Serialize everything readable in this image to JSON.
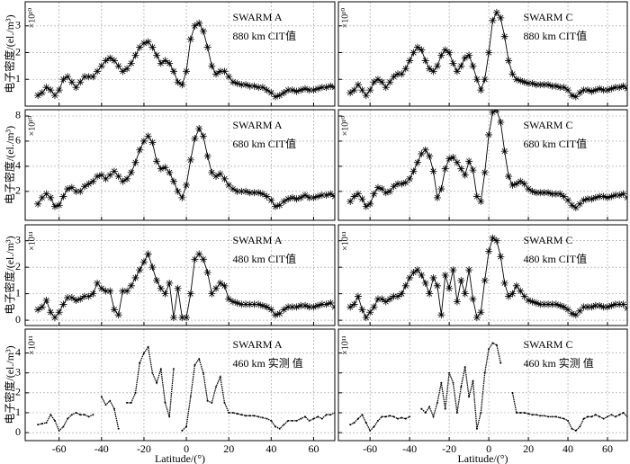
{
  "chart_data": [
    {
      "type": "line",
      "marker": "asterisk",
      "color": "#000000",
      "annotation": [
        "SWARM A",
        "880 km CIT值"
      ],
      "y_exponent_label": "×10¹⁰",
      "ylabel": "电子密度/(el./m³)",
      "xlim": [
        -76,
        70
      ],
      "xticks": [
        -60,
        -40,
        -20,
        0,
        20,
        40,
        60
      ],
      "ylim": [
        0,
        3.9
      ],
      "yticks": [
        1,
        2,
        3
      ],
      "grid": true,
      "x": [
        -70,
        -68,
        -66,
        -64,
        -62,
        -60,
        -58,
        -56,
        -54,
        -52,
        -50,
        -48,
        -46,
        -44,
        -42,
        -40,
        -38,
        -36,
        -34,
        -32,
        -30,
        -28,
        -26,
        -24,
        -22,
        -20,
        -18,
        -16,
        -14,
        -12,
        -10,
        -8,
        -6,
        -4,
        -2,
        0,
        2,
        4,
        6,
        8,
        10,
        12,
        14,
        16,
        18,
        20,
        22,
        24,
        26,
        28,
        30,
        32,
        34,
        36,
        38,
        40,
        42,
        44,
        46,
        48,
        50,
        52,
        54,
        56,
        58,
        60,
        62,
        64,
        66,
        68,
        70
      ],
      "values": [
        0.4,
        0.5,
        0.7,
        0.6,
        0.4,
        0.6,
        1.0,
        1.1,
        0.9,
        0.7,
        0.9,
        1.1,
        1.1,
        1.1,
        1.3,
        1.5,
        1.7,
        1.8,
        1.7,
        1.5,
        1.3,
        1.4,
        1.6,
        1.9,
        2.2,
        2.35,
        2.4,
        2.2,
        1.9,
        1.6,
        1.7,
        1.6,
        1.3,
        0.9,
        0.8,
        1.3,
        2.5,
        3.0,
        3.1,
        2.8,
        2.2,
        1.5,
        1.2,
        1.3,
        1.3,
        1.1,
        0.9,
        0.85,
        0.8,
        0.8,
        0.75,
        0.75,
        0.7,
        0.7,
        0.6,
        0.5,
        0.35,
        0.4,
        0.5,
        0.6,
        0.6,
        0.55,
        0.6,
        0.65,
        0.6,
        0.6,
        0.65,
        0.7,
        0.7,
        0.75,
        0.7
      ]
    },
    {
      "type": "line",
      "marker": "asterisk",
      "color": "#000000",
      "annotation": [
        "SWARM C",
        "880 km CIT值"
      ],
      "y_exponent_label": "×10¹⁰",
      "xlim": [
        -76,
        70
      ],
      "xticks": [
        -60,
        -40,
        -20,
        0,
        20,
        40,
        60
      ],
      "ylim": [
        0,
        3.9
      ],
      "yticks": [
        1,
        2,
        3
      ],
      "grid": true,
      "x": [
        -70,
        -68,
        -66,
        -64,
        -62,
        -60,
        -58,
        -56,
        -54,
        -52,
        -50,
        -48,
        -46,
        -44,
        -42,
        -40,
        -38,
        -36,
        -34,
        -32,
        -30,
        -28,
        -26,
        -24,
        -22,
        -20,
        -18,
        -16,
        -14,
        -12,
        -10,
        -8,
        -6,
        -4,
        -2,
        0,
        2,
        4,
        6,
        8,
        10,
        12,
        14,
        16,
        18,
        20,
        22,
        24,
        26,
        28,
        30,
        32,
        34,
        36,
        38,
        40,
        42,
        44,
        46,
        48,
        50,
        52,
        54,
        56,
        58,
        60,
        62,
        64,
        66,
        68,
        70
      ],
      "values": [
        0.5,
        0.6,
        0.8,
        0.6,
        0.4,
        0.6,
        0.9,
        1.0,
        0.9,
        0.7,
        0.9,
        1.1,
        1.2,
        1.2,
        1.4,
        1.7,
        2.0,
        2.2,
        2.1,
        1.7,
        1.4,
        1.3,
        1.5,
        1.9,
        2.1,
        2.0,
        1.6,
        1.3,
        1.5,
        1.8,
        1.9,
        1.5,
        1.0,
        0.6,
        1.0,
        2.0,
        3.2,
        3.5,
        3.3,
        2.6,
        1.7,
        1.2,
        1.0,
        0.95,
        0.9,
        0.85,
        0.85,
        0.8,
        0.8,
        0.8,
        0.8,
        0.75,
        0.75,
        0.7,
        0.7,
        0.6,
        0.4,
        0.35,
        0.5,
        0.6,
        0.6,
        0.55,
        0.6,
        0.65,
        0.6,
        0.6,
        0.65,
        0.7,
        0.7,
        0.75,
        0.65
      ]
    },
    {
      "type": "line",
      "marker": "asterisk",
      "color": "#000000",
      "annotation": [
        "SWARM A",
        "680 km CIT值"
      ],
      "y_exponent_label": "×10¹⁰",
      "ylabel": "电子密度/(el./m³)",
      "xlim": [
        -76,
        70
      ],
      "xticks": [
        -60,
        -40,
        -20,
        0,
        20,
        40,
        60
      ],
      "ylim": [
        -0.3,
        8.5
      ],
      "yticks": [
        2,
        4,
        6,
        8
      ],
      "grid": true,
      "x": [
        -70,
        -68,
        -66,
        -64,
        -62,
        -60,
        -58,
        -56,
        -54,
        -52,
        -50,
        -48,
        -46,
        -44,
        -42,
        -40,
        -38,
        -36,
        -34,
        -32,
        -30,
        -28,
        -26,
        -24,
        -22,
        -20,
        -18,
        -16,
        -14,
        -12,
        -10,
        -8,
        -6,
        -4,
        -2,
        0,
        2,
        4,
        6,
        8,
        10,
        12,
        14,
        16,
        18,
        20,
        22,
        24,
        26,
        28,
        30,
        32,
        34,
        36,
        38,
        40,
        42,
        44,
        46,
        48,
        50,
        52,
        54,
        56,
        58,
        60,
        62,
        64,
        66,
        68,
        70
      ],
      "values": [
        1.0,
        1.5,
        1.8,
        1.5,
        0.8,
        0.9,
        1.6,
        2.2,
        2.3,
        2.0,
        2.0,
        2.4,
        2.6,
        2.8,
        3.2,
        3.3,
        3.0,
        3.3,
        3.6,
        3.2,
        2.8,
        3.0,
        3.5,
        4.3,
        5.3,
        6.0,
        6.4,
        5.9,
        4.4,
        3.8,
        3.9,
        3.5,
        2.8,
        2.0,
        1.5,
        2.5,
        4.5,
        6.2,
        7.0,
        6.4,
        4.8,
        3.5,
        3.2,
        3.4,
        3.0,
        2.5,
        2.2,
        2.0,
        2.0,
        2.0,
        1.9,
        1.9,
        1.9,
        1.8,
        1.6,
        1.3,
        0.8,
        0.9,
        1.2,
        1.4,
        1.5,
        1.4,
        1.5,
        1.7,
        1.5,
        1.5,
        1.6,
        1.7,
        1.7,
        1.8,
        1.6
      ]
    },
    {
      "type": "line",
      "marker": "asterisk",
      "color": "#000000",
      "annotation": [
        "SWARM C",
        "680 km CIT值"
      ],
      "y_exponent_label": "×10¹⁰",
      "xlim": [
        -76,
        70
      ],
      "xticks": [
        -60,
        -40,
        -20,
        0,
        20,
        40,
        60
      ],
      "ylim": [
        -0.3,
        8.5
      ],
      "yticks": [
        2,
        4,
        6,
        8
      ],
      "grid": true,
      "x": [
        -70,
        -68,
        -66,
        -64,
        -62,
        -60,
        -58,
        -56,
        -54,
        -52,
        -50,
        -48,
        -46,
        -44,
        -42,
        -40,
        -38,
        -36,
        -34,
        -32,
        -30,
        -28,
        -26,
        -24,
        -22,
        -20,
        -18,
        -16,
        -14,
        -12,
        -10,
        -8,
        -6,
        -4,
        -2,
        0,
        2,
        4,
        6,
        8,
        10,
        12,
        14,
        16,
        18,
        20,
        22,
        24,
        26,
        28,
        30,
        32,
        34,
        36,
        38,
        40,
        42,
        44,
        46,
        48,
        50,
        52,
        54,
        56,
        58,
        60,
        62,
        64,
        66,
        68,
        70
      ],
      "values": [
        1.2,
        1.6,
        1.8,
        1.4,
        0.8,
        1.0,
        1.8,
        2.3,
        2.2,
        1.9,
        2.0,
        2.4,
        2.6,
        2.6,
        2.7,
        3.0,
        3.6,
        4.3,
        5.0,
        5.3,
        4.8,
        3.6,
        1.5,
        2.2,
        3.8,
        4.6,
        4.7,
        4.3,
        3.8,
        3.3,
        4.4,
        3.7,
        1.6,
        1.2,
        3.5,
        6.5,
        8.3,
        8.5,
        7.5,
        5.2,
        3.2,
        2.5,
        2.6,
        2.8,
        2.6,
        2.2,
        2.0,
        1.9,
        1.9,
        1.9,
        1.9,
        1.8,
        1.8,
        1.8,
        1.6,
        1.3,
        0.9,
        0.7,
        1.0,
        1.3,
        1.4,
        1.4,
        1.5,
        1.6,
        1.6,
        1.5,
        1.6,
        1.7,
        1.7,
        1.8,
        1.5
      ]
    },
    {
      "type": "line",
      "marker": "asterisk",
      "color": "#000000",
      "annotation": [
        "SWARM  A",
        "480 km CIT值"
      ],
      "y_exponent_label": "×10¹¹",
      "ylabel": "电子密度/(el./m³)",
      "xlim": [
        -76,
        70
      ],
      "xticks": [
        -60,
        -40,
        -20,
        0,
        20,
        40,
        60
      ],
      "ylim": [
        -0.2,
        3.6
      ],
      "yticks": [
        0,
        1,
        2,
        3
      ],
      "grid": true,
      "x": [
        -70,
        -68,
        -66,
        -64,
        -62,
        -60,
        -58,
        -56,
        -54,
        -52,
        -50,
        -48,
        -46,
        -44,
        -42,
        -40,
        -38,
        -36,
        -34,
        -32,
        -30,
        -28,
        -26,
        -24,
        -22,
        -20,
        -18,
        -16,
        -14,
        -12,
        -10,
        -8,
        -6,
        -4,
        -2,
        0,
        2,
        4,
        6,
        8,
        10,
        12,
        14,
        16,
        18,
        20,
        22,
        24,
        26,
        28,
        30,
        32,
        34,
        36,
        38,
        40,
        42,
        44,
        46,
        48,
        50,
        52,
        54,
        56,
        58,
        60,
        62,
        64,
        66,
        68,
        70
      ],
      "values": [
        0.4,
        0.5,
        0.75,
        0.3,
        0.1,
        0.3,
        0.6,
        0.85,
        0.85,
        0.75,
        0.8,
        0.9,
        0.9,
        1.0,
        1.4,
        1.2,
        1.1,
        1.1,
        0.4,
        0.2,
        1.1,
        1.1,
        1.3,
        1.6,
        1.9,
        2.2,
        2.5,
        2.0,
        1.5,
        1.2,
        1.0,
        1.4,
        0.1,
        1.2,
        0.1,
        0.1,
        1.0,
        2.3,
        2.5,
        2.3,
        1.8,
        1.0,
        1.2,
        1.4,
        1.3,
        0.8,
        0.7,
        0.65,
        0.6,
        0.6,
        0.6,
        0.6,
        0.6,
        0.55,
        0.5,
        0.4,
        0.2,
        0.25,
        0.4,
        0.5,
        0.5,
        0.5,
        0.55,
        0.55,
        0.5,
        0.5,
        0.55,
        0.6,
        0.6,
        0.65,
        0.5
      ]
    },
    {
      "type": "line",
      "marker": "asterisk",
      "color": "#000000",
      "annotation": [
        "SWARM  C",
        "480 km CIT值"
      ],
      "y_exponent_label": "×10¹¹",
      "xlim": [
        -76,
        70
      ],
      "xticks": [
        -60,
        -40,
        -20,
        0,
        20,
        40,
        60
      ],
      "ylim": [
        -0.2,
        3.6
      ],
      "yticks": [
        0,
        1,
        2,
        3
      ],
      "grid": true,
      "x": [
        -70,
        -68,
        -66,
        -64,
        -62,
        -60,
        -58,
        -56,
        -54,
        -52,
        -50,
        -48,
        -46,
        -44,
        -42,
        -40,
        -38,
        -36,
        -34,
        -32,
        -30,
        -28,
        -26,
        -24,
        -22,
        -20,
        -18,
        -16,
        -14,
        -12,
        -10,
        -8,
        -6,
        -4,
        -2,
        0,
        2,
        4,
        6,
        8,
        10,
        12,
        14,
        16,
        18,
        20,
        22,
        24,
        26,
        28,
        30,
        32,
        34,
        36,
        38,
        40,
        42,
        44,
        46,
        48,
        50,
        52,
        54,
        56,
        58,
        60,
        62,
        64,
        66,
        68,
        70
      ],
      "values": [
        0.5,
        0.6,
        0.9,
        0.4,
        0.1,
        0.3,
        0.5,
        0.8,
        0.8,
        0.7,
        0.8,
        0.9,
        0.9,
        1.0,
        1.3,
        1.6,
        1.8,
        1.9,
        1.7,
        1.4,
        1.0,
        1.6,
        1.3,
        0.2,
        1.7,
        1.2,
        1.9,
        0.7,
        1.5,
        1.0,
        1.9,
        0.8,
        0.1,
        0.3,
        1.5,
        2.6,
        3.1,
        3.0,
        2.4,
        1.4,
        0.9,
        1.0,
        1.3,
        1.1,
        0.9,
        0.75,
        0.7,
        0.65,
        0.6,
        0.6,
        0.6,
        0.6,
        0.6,
        0.55,
        0.5,
        0.4,
        0.25,
        0.2,
        0.35,
        0.5,
        0.5,
        0.5,
        0.55,
        0.55,
        0.5,
        0.5,
        0.55,
        0.6,
        0.6,
        0.6,
        0.45
      ]
    },
    {
      "type": "line",
      "marker": "dot",
      "color": "#000000",
      "annotation": [
        "SWARM  A",
        "460 km 实测 值"
      ],
      "y_exponent_label": "×10¹¹",
      "ylabel": "电子密度/(el./m³)",
      "xlabel": "Latitude/(°)",
      "xlim": [
        -76,
        70
      ],
      "xticks": [
        -60,
        -40,
        -20,
        0,
        20,
        40,
        60
      ],
      "ylim": [
        -0.4,
        5.2
      ],
      "yticks": [
        0,
        1,
        2,
        3,
        4
      ],
      "grid": true,
      "x": [
        -70,
        -68,
        -66,
        -64,
        -62,
        -60,
        -58,
        -56,
        -54,
        -52,
        -50,
        -48,
        -46,
        -44,
        -42,
        -40,
        -38,
        -36,
        -34,
        -32,
        -30,
        -28,
        -26,
        -24,
        -22,
        -20,
        -18,
        -16,
        -14,
        -12,
        -10,
        -8,
        -6,
        -4,
        -2,
        0,
        2,
        4,
        6,
        8,
        10,
        12,
        14,
        16,
        18,
        20,
        22,
        24,
        26,
        28,
        30,
        32,
        34,
        36,
        38,
        40,
        42,
        44,
        46,
        48,
        50,
        52,
        54,
        56,
        58,
        60,
        62,
        64,
        66,
        68,
        70
      ],
      "values": [
        0.4,
        0.45,
        0.5,
        0.9,
        0.6,
        0.1,
        0.3,
        0.7,
        0.9,
        1.0,
        0.9,
        0.9,
        0.8,
        0.9,
        null,
        1.8,
        1.4,
        1.6,
        1.2,
        0.2,
        null,
        1.5,
        1.5,
        2.0,
        3.5,
        4.0,
        4.3,
        3.0,
        2.5,
        3.2,
        1.5,
        0.8,
        3.2,
        null,
        0.1,
        0.3,
        1.8,
        3.4,
        3.7,
        3.0,
        1.6,
        1.5,
        2.3,
        2.8,
        1.5,
        1.0,
        1.0,
        0.95,
        0.9,
        0.85,
        0.85,
        0.85,
        0.8,
        0.75,
        0.7,
        0.6,
        0.3,
        0.2,
        0.4,
        0.6,
        0.6,
        0.6,
        0.7,
        0.8,
        0.6,
        0.7,
        0.8,
        0.7,
        0.9,
        0.9,
        1.0
      ]
    },
    {
      "type": "line",
      "marker": "dot",
      "color": "#000000",
      "annotation": [
        "SWARM  C",
        "460 km 实测 值"
      ],
      "y_exponent_label": "×10¹¹",
      "xlabel": "Latitude/(°)",
      "xlim": [
        -76,
        70
      ],
      "xticks": [
        -60,
        -40,
        -20,
        0,
        20,
        40,
        60
      ],
      "ylim": [
        -0.4,
        5.2
      ],
      "yticks": [
        0,
        1,
        2,
        3,
        4
      ],
      "grid": true,
      "x": [
        -70,
        -68,
        -66,
        -64,
        -62,
        -60,
        -58,
        -56,
        -54,
        -52,
        -50,
        -48,
        -46,
        -44,
        -42,
        -40,
        -38,
        -36,
        -34,
        -32,
        -30,
        -28,
        -26,
        -24,
        -22,
        -20,
        -18,
        -16,
        -14,
        -12,
        -10,
        -8,
        -6,
        -4,
        -2,
        0,
        2,
        4,
        6,
        8,
        10,
        12,
        14,
        16,
        18,
        20,
        22,
        24,
        26,
        28,
        30,
        32,
        34,
        36,
        38,
        40,
        42,
        44,
        46,
        48,
        50,
        52,
        54,
        56,
        58,
        60,
        62,
        64,
        66,
        68,
        70
      ],
      "values": [
        0.4,
        0.5,
        0.7,
        0.9,
        0.5,
        0.1,
        0.3,
        0.6,
        0.8,
        0.8,
        0.85,
        0.8,
        0.7,
        0.75,
        0.7,
        0.8,
        null,
        null,
        1.2,
        1.0,
        1.3,
        0.8,
        1.5,
        2.5,
        1.2,
        3.0,
        2.5,
        1.0,
        2.3,
        3.3,
        1.8,
        2.6,
        0.2,
        1.0,
        3.0,
        4.2,
        4.5,
        4.4,
        3.5,
        null,
        null,
        2.0,
        1.0,
        1.0,
        1.0,
        0.95,
        0.9,
        0.9,
        0.85,
        0.85,
        0.8,
        0.8,
        0.8,
        0.75,
        0.7,
        0.6,
        0.2,
        0.1,
        0.3,
        0.7,
        0.8,
        0.8,
        0.9,
        0.8,
        0.7,
        0.8,
        0.9,
        0.8,
        0.9,
        1.0,
        0.8
      ]
    }
  ]
}
